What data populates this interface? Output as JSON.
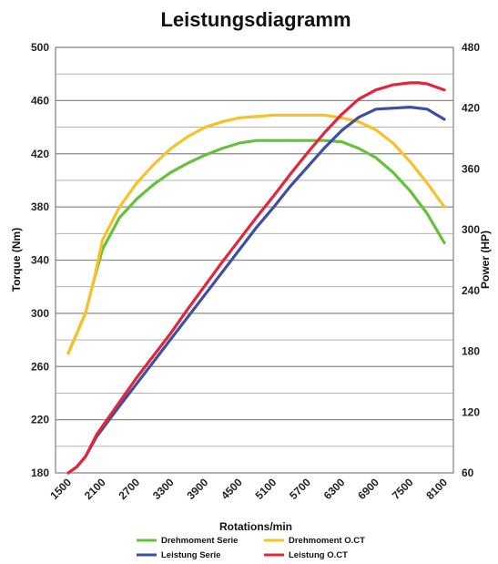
{
  "chart_data": {
    "type": "line",
    "title": "Leistungsdiagramm",
    "xlabel": "Rotations/min",
    "ylabel_left": "Torque (Nm)",
    "ylabel_right": "Power (HP)",
    "x_ticks": [
      "1500",
      "2100",
      "2700",
      "3300",
      "3900",
      "4500",
      "5100",
      "5700",
      "6300",
      "6900",
      "7500",
      "8100"
    ],
    "xlim": [
      1500,
      8100
    ],
    "ylim_left": [
      180,
      500
    ],
    "yticks_left": [
      "180",
      "220",
      "260",
      "300",
      "340",
      "380",
      "420",
      "460",
      "500"
    ],
    "ylim_right": [
      60,
      480
    ],
    "yticks_right": [
      "60",
      "120",
      "180",
      "240",
      "300",
      "360",
      "420",
      "480"
    ],
    "grid": "horizontal",
    "legend_position": "bottom",
    "series": [
      {
        "name": "Drehmoment Serie",
        "axis": "left",
        "color": "#66c03a",
        "x": [
          1500,
          1800,
          1950,
          2100,
          2400,
          2700,
          3000,
          3300,
          3600,
          3900,
          4200,
          4500,
          4800,
          5100,
          5400,
          5700,
          6000,
          6300,
          6600,
          6900,
          7200,
          7500,
          7800,
          8100
        ],
        "y": [
          270,
          300,
          325,
          348,
          372,
          386,
          397,
          406,
          413,
          419,
          424,
          428,
          430,
          430,
          430,
          430,
          430,
          429,
          424,
          417,
          406,
          392,
          375,
          353
        ]
      },
      {
        "name": "Drehmoment O.CT",
        "axis": "left",
        "color": "#f7c12a",
        "x": [
          1500,
          1800,
          1950,
          2100,
          2400,
          2700,
          3000,
          3300,
          3600,
          3900,
          4200,
          4500,
          4800,
          5100,
          5400,
          5700,
          6000,
          6300,
          6600,
          6900,
          7200,
          7500,
          7800,
          8100
        ],
        "y": [
          270,
          300,
          325,
          355,
          380,
          398,
          412,
          424,
          433,
          440,
          444,
          447,
          448,
          449,
          449,
          449,
          449,
          447,
          444,
          438,
          428,
          414,
          398,
          380
        ]
      },
      {
        "name": "Leistung Serie",
        "axis": "right",
        "color": "#3c4fa3",
        "x": [
          1500,
          1650,
          1800,
          2000,
          2400,
          2700,
          3000,
          3300,
          3600,
          3900,
          4200,
          4500,
          4800,
          5100,
          5400,
          5700,
          6000,
          6300,
          6600,
          6900,
          7200,
          7500,
          7650,
          7800,
          8100
        ],
        "y": [
          60,
          66,
          76,
          96,
          126,
          148,
          170,
          192,
          214,
          236,
          258,
          280,
          302,
          322,
          343,
          362,
          381,
          398,
          411,
          419,
          420,
          421,
          420,
          419,
          409
        ]
      },
      {
        "name": "Leistung O.CT",
        "axis": "right",
        "color": "#e3263b",
        "x": [
          1500,
          1650,
          1800,
          2000,
          2400,
          2700,
          3000,
          3300,
          3600,
          3900,
          4200,
          4500,
          4800,
          5100,
          5400,
          5700,
          6000,
          6300,
          6600,
          6900,
          7200,
          7500,
          7650,
          7800,
          8100
        ],
        "y": [
          60,
          66,
          76,
          98,
          130,
          154,
          176,
          198,
          222,
          245,
          268,
          290,
          312,
          333,
          355,
          376,
          396,
          414,
          429,
          438,
          443,
          445,
          445,
          444,
          438
        ]
      }
    ]
  }
}
